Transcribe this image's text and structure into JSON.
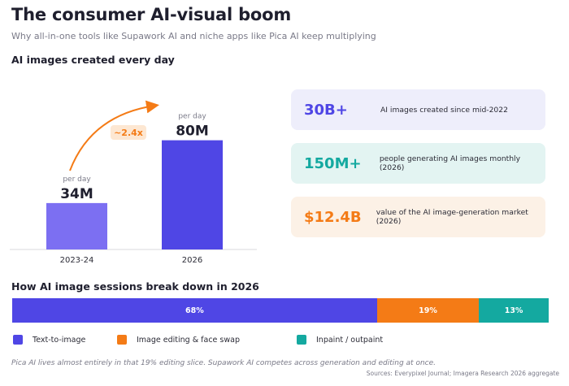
{
  "header": {
    "title": "The consumer AI-visual boom",
    "subtitle": "Why all-in-one tools like Supawork AI and niche apps like Pica AI keep multiplying"
  },
  "bar_section": {
    "title": "AI images created every day"
  },
  "growth_label": "~2.4x",
  "stats": [
    {
      "value": "30B+",
      "label": "AI images created since mid-2022",
      "color": "#4f46e5",
      "bg": "#eeeefb"
    },
    {
      "value": "150M+",
      "label": "people generating AI images monthly (2026)",
      "color": "#14a9a0",
      "bg": "#e3f4f2"
    },
    {
      "value": "$12.4B",
      "label": "value of the AI image-generation market (2026)",
      "color": "#f47b16",
      "bg": "#fcf1e6"
    }
  ],
  "breakdown_section": {
    "title": "How AI image sessions break down in 2026"
  },
  "note": "Pica AI lives almost entirely in that 19% editing slice. Supawork AI competes across generation and editing at once.",
  "sources": "Sources: Everypixel Journal; Imagera Research 2026 aggregate",
  "chart_data": [
    {
      "type": "bar",
      "title": "AI images created every day",
      "categories": [
        "2023-24",
        "2026"
      ],
      "values": [
        34000000,
        80000000
      ],
      "value_labels": [
        "34M",
        "80M"
      ],
      "value_sublabel": "per day",
      "colors": [
        "#7c6ff2",
        "#4f46e5"
      ],
      "annotation": "~2.4x",
      "annotation_color": "#f47b16",
      "ylim": [
        0,
        100000000
      ],
      "grid": false
    },
    {
      "type": "bar",
      "orientation": "horizontal-stacked",
      "title": "How AI image sessions break down in 2026",
      "series": [
        {
          "name": "Text-to-image",
          "value": 68,
          "label": "68%",
          "color": "#4f46e5"
        },
        {
          "name": "Image editing & face swap",
          "value": 19,
          "label": "19%",
          "color": "#f47b16"
        },
        {
          "name": "Inpaint / outpaint",
          "value": 13,
          "label": "13%",
          "color": "#14a9a0"
        }
      ],
      "legend": "bottom"
    }
  ]
}
